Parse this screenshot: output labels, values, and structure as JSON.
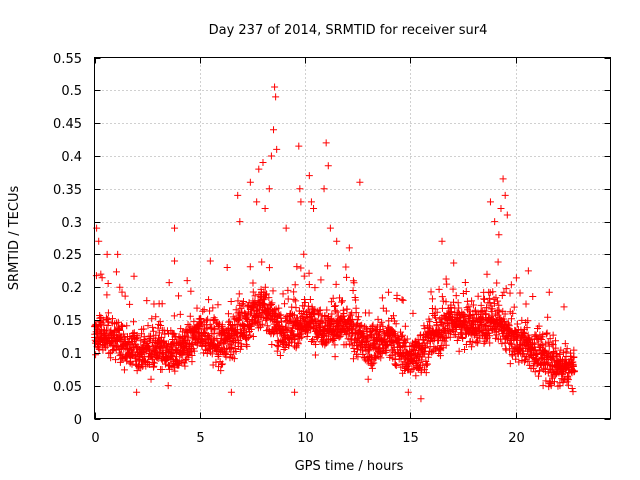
{
  "chart_data": {
    "type": "scatter",
    "title": "Day 237 of 2014, SRMTID for receiver sur4",
    "xlabel": "GPS time / hours",
    "ylabel": "SRMTID / TECUs",
    "xlim": [
      0,
      24.5
    ],
    "ylim": [
      0,
      0.55
    ],
    "xticks": [
      "0",
      "5",
      "10",
      "15",
      "20"
    ],
    "xtick_values": [
      0,
      5,
      10,
      15,
      20
    ],
    "yticks": [
      "0",
      "0.05",
      "0.1",
      "0.15",
      "0.2",
      "0.25",
      "0.3",
      "0.35",
      "0.4",
      "0.45",
      "0.5",
      "0.55"
    ],
    "ytick_values": [
      0,
      0.05,
      0.1,
      0.15,
      0.2,
      0.25,
      0.3,
      0.35,
      0.4,
      0.45,
      0.5,
      0.55
    ],
    "grid": true,
    "marker": "+",
    "series_color": "#ff0000",
    "x_range_observed": [
      0,
      22.8
    ],
    "baseline_profile": [
      [
        0.0,
        0.13
      ],
      [
        1.0,
        0.12
      ],
      [
        2.0,
        0.1
      ],
      [
        3.0,
        0.11
      ],
      [
        4.0,
        0.1
      ],
      [
        5.0,
        0.13
      ],
      [
        6.0,
        0.11
      ],
      [
        7.0,
        0.14
      ],
      [
        8.0,
        0.17
      ],
      [
        9.0,
        0.13
      ],
      [
        10.0,
        0.15
      ],
      [
        11.0,
        0.14
      ],
      [
        12.0,
        0.14
      ],
      [
        13.0,
        0.11
      ],
      [
        14.0,
        0.12
      ],
      [
        15.0,
        0.09
      ],
      [
        16.0,
        0.12
      ],
      [
        17.0,
        0.15
      ],
      [
        18.0,
        0.14
      ],
      [
        19.0,
        0.15
      ],
      [
        20.0,
        0.12
      ],
      [
        21.0,
        0.1
      ],
      [
        22.0,
        0.08
      ],
      [
        22.8,
        0.08
      ]
    ],
    "highlighted_points": [
      {
        "x": 0.1,
        "y": 0.29
      },
      {
        "x": 0.2,
        "y": 0.27
      },
      {
        "x": 0.3,
        "y": 0.22
      },
      {
        "x": 0.6,
        "y": 0.25
      },
      {
        "x": 1.1,
        "y": 0.25
      },
      {
        "x": 1.2,
        "y": 0.2
      },
      {
        "x": 3.8,
        "y": 0.29
      },
      {
        "x": 3.8,
        "y": 0.24
      },
      {
        "x": 4.4,
        "y": 0.21
      },
      {
        "x": 5.5,
        "y": 0.24
      },
      {
        "x": 6.3,
        "y": 0.23
      },
      {
        "x": 6.8,
        "y": 0.34
      },
      {
        "x": 6.9,
        "y": 0.3
      },
      {
        "x": 7.4,
        "y": 0.36
      },
      {
        "x": 7.7,
        "y": 0.33
      },
      {
        "x": 7.8,
        "y": 0.38
      },
      {
        "x": 8.0,
        "y": 0.39
      },
      {
        "x": 8.1,
        "y": 0.32
      },
      {
        "x": 8.3,
        "y": 0.35
      },
      {
        "x": 8.4,
        "y": 0.4
      },
      {
        "x": 8.5,
        "y": 0.44
      },
      {
        "x": 8.55,
        "y": 0.505
      },
      {
        "x": 8.6,
        "y": 0.49
      },
      {
        "x": 8.65,
        "y": 0.41
      },
      {
        "x": 9.1,
        "y": 0.29
      },
      {
        "x": 9.7,
        "y": 0.415
      },
      {
        "x": 9.75,
        "y": 0.35
      },
      {
        "x": 9.8,
        "y": 0.33
      },
      {
        "x": 10.2,
        "y": 0.37
      },
      {
        "x": 10.3,
        "y": 0.33
      },
      {
        "x": 10.4,
        "y": 0.32
      },
      {
        "x": 10.9,
        "y": 0.35
      },
      {
        "x": 11.0,
        "y": 0.42
      },
      {
        "x": 11.1,
        "y": 0.385
      },
      {
        "x": 11.2,
        "y": 0.29
      },
      {
        "x": 11.5,
        "y": 0.27
      },
      {
        "x": 12.1,
        "y": 0.26
      },
      {
        "x": 12.6,
        "y": 0.36
      },
      {
        "x": 16.5,
        "y": 0.27
      },
      {
        "x": 18.8,
        "y": 0.33
      },
      {
        "x": 19.0,
        "y": 0.3
      },
      {
        "x": 19.2,
        "y": 0.28
      },
      {
        "x": 19.3,
        "y": 0.32
      },
      {
        "x": 19.4,
        "y": 0.365
      },
      {
        "x": 19.5,
        "y": 0.34
      },
      {
        "x": 19.6,
        "y": 0.31
      },
      {
        "x": 20.6,
        "y": 0.225
      },
      {
        "x": 2.0,
        "y": 0.04
      },
      {
        "x": 3.5,
        "y": 0.05
      },
      {
        "x": 6.5,
        "y": 0.04
      },
      {
        "x": 9.5,
        "y": 0.04
      },
      {
        "x": 14.9,
        "y": 0.04
      },
      {
        "x": 15.5,
        "y": 0.03
      },
      {
        "x": 21.3,
        "y": 0.05
      },
      {
        "x": 22.1,
        "y": 0.05
      }
    ]
  }
}
